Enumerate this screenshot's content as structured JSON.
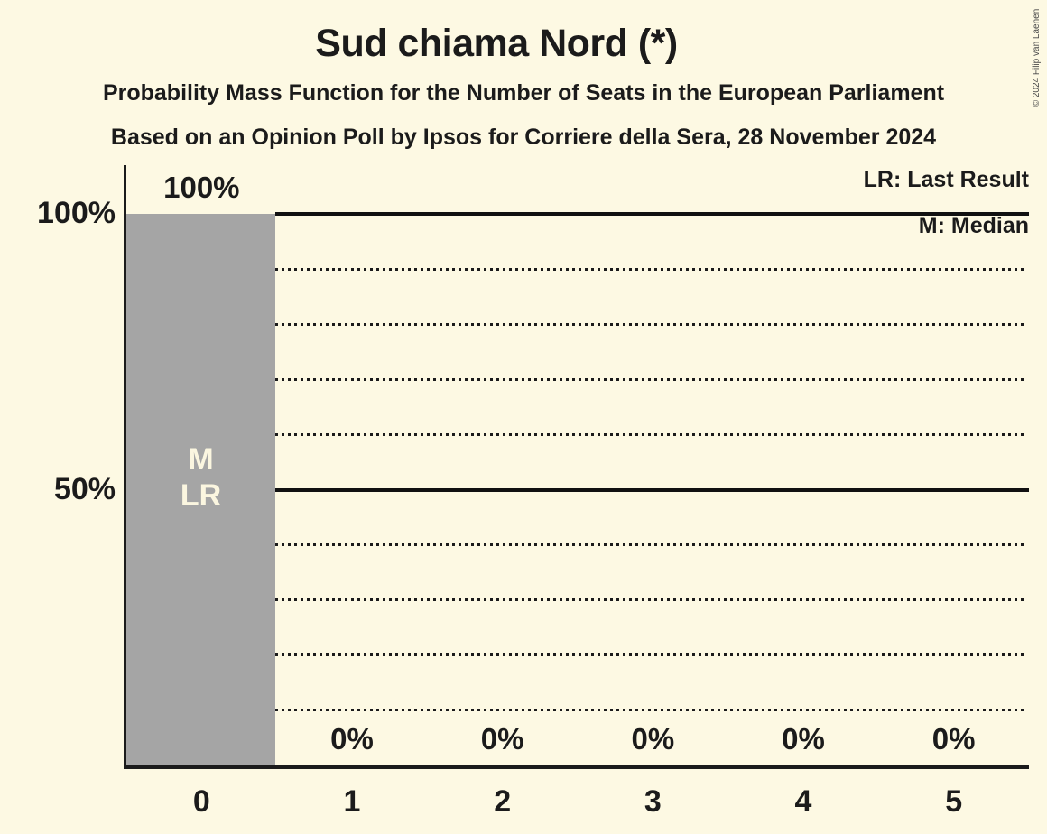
{
  "chart_data": {
    "type": "bar",
    "title": "Sud chiama Nord (*)",
    "subtitle1": "Probability Mass Function for the Number of Seats in the European Parliament",
    "subtitle2": "Based on an Opinion Poll by Ipsos for Corriere della Sera, 28 November 2024",
    "categories": [
      "0",
      "1",
      "2",
      "3",
      "4",
      "5"
    ],
    "values": [
      100,
      0,
      0,
      0,
      0,
      0
    ],
    "value_labels": [
      "100%",
      "0%",
      "0%",
      "0%",
      "0%",
      "0%"
    ],
    "bar_flags": {
      "0": [
        "M",
        "LR"
      ]
    },
    "xlabel": "",
    "ylabel": "",
    "ylim": [
      0,
      100
    ],
    "y_ticks": [
      {
        "pct": 100,
        "label": "100%"
      },
      {
        "pct": 50,
        "label": "50%"
      }
    ],
    "solid_gridlines": [
      100,
      50
    ],
    "dotted_gridlines": [
      90,
      80,
      70,
      60,
      40,
      30,
      20,
      10
    ],
    "legend": [
      "LR: Last Result",
      "M: Median"
    ],
    "legend_notes": {
      "LR": "Last Result",
      "M": "Median"
    },
    "colors": {
      "background": "#FDF9E3",
      "bar": "#A5A5A5",
      "bar_label": "#FBF6E0",
      "text": "#1B1B1B",
      "gridline": "#111111"
    },
    "copyright": "© 2024 Filip van Laenen"
  }
}
